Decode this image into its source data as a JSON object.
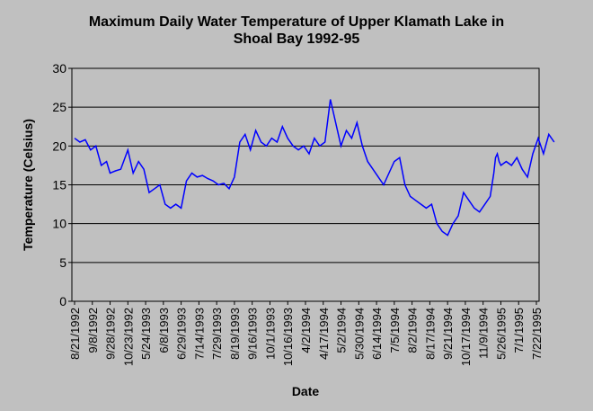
{
  "chart_data": {
    "type": "line",
    "title": [
      "Maximum Daily Water Temperature of Upper Klamath Lake in",
      "Shoal Bay 1992-95"
    ],
    "xlabel": "Date",
    "ylabel": "Temperature (Celsius)",
    "ylim": [
      0,
      30
    ],
    "yticks": [
      0,
      5,
      10,
      15,
      20,
      25,
      30
    ],
    "grid": "horizontal",
    "x_tick_labels": [
      "8/21/1992",
      "9/8/1992",
      "9/28/1992",
      "10/23/1992",
      "5/24/1993",
      "6/8/1993",
      "6/29/1993",
      "7/14/1993",
      "7/29/1993",
      "8/19/1993",
      "9/16/1993",
      "10/1/1993",
      "10/16/1993",
      "4/2/1994",
      "4/17/1994",
      "5/2/1994",
      "5/30/1994",
      "6/14/1994",
      "7/5/1994",
      "8/2/1994",
      "8/17/1994",
      "9/21/1994",
      "10/17/1994",
      "11/9/1994",
      "5/26/1995",
      "7/1/1995",
      "7/22/1995"
    ],
    "line_color": "#0000ff",
    "series": [
      {
        "x": [
          0,
          0.3,
          0.6,
          0.9,
          1.2,
          1.5,
          1.8,
          2.0,
          2.3,
          2.6,
          3.0,
          3.3,
          3.6,
          3.9,
          4.2,
          4.5,
          4.8,
          5.1,
          5.4,
          5.7,
          6.0,
          6.3,
          6.6,
          6.9,
          7.2,
          7.5,
          7.8,
          8.1,
          8.4,
          8.7,
          9.0,
          9.3,
          9.6,
          9.9,
          10.2,
          10.5,
          10.8,
          11.1,
          11.4,
          11.7,
          12.0,
          12.3,
          12.6,
          12.9,
          13.2,
          13.5,
          13.8,
          14.1,
          14.4,
          14.7,
          15.0,
          15.3,
          15.6,
          15.9,
          16.2,
          16.5,
          16.8,
          17.1,
          17.4,
          17.7,
          18.0,
          18.3,
          18.6,
          18.9,
          19.2,
          19.5,
          19.8,
          20.1,
          20.4,
          20.7,
          21.0,
          21.3,
          21.6,
          21.9,
          22.2,
          22.5,
          22.8,
          23.1,
          23.4,
          23.6,
          23.7,
          23.8,
          23.9,
          24.0,
          24.3,
          24.6,
          24.9,
          25.2,
          25.5,
          25.8,
          26.1,
          26.4,
          26.7,
          27.0
        ],
        "y": [
          21.0,
          20.5,
          20.8,
          19.5,
          20.0,
          17.5,
          18.0,
          16.5,
          16.8,
          17.0,
          19.5,
          16.5,
          18.0,
          17.0,
          14.0,
          14.5,
          15.0,
          12.5,
          12.0,
          12.5,
          12.0,
          15.5,
          16.5,
          16.0,
          16.2,
          15.8,
          15.5,
          15.0,
          15.2,
          14.5,
          16.0,
          20.5,
          21.5,
          19.5,
          22.0,
          20.5,
          20.0,
          21.0,
          20.5,
          22.5,
          21.0,
          20.0,
          19.5,
          20.0,
          19.0,
          21.0,
          20.0,
          20.5,
          26.0,
          23.0,
          20.0,
          22.0,
          21.0,
          23.0,
          20.0,
          18.0,
          17.0,
          16.0,
          15.0,
          16.5,
          18.0,
          18.5,
          15.0,
          13.5,
          13.0,
          12.5,
          12.0,
          12.5,
          10.0,
          9.0,
          8.5,
          10.0,
          11.0,
          14.0,
          13.0,
          12.0,
          11.5,
          12.5,
          13.5,
          16.5,
          18.5,
          19.0,
          18.0,
          17.5,
          18.0,
          17.5,
          18.5,
          17.0,
          16.0,
          19.0,
          21.0,
          19.0,
          21.5,
          20.5
        ]
      }
    ]
  }
}
